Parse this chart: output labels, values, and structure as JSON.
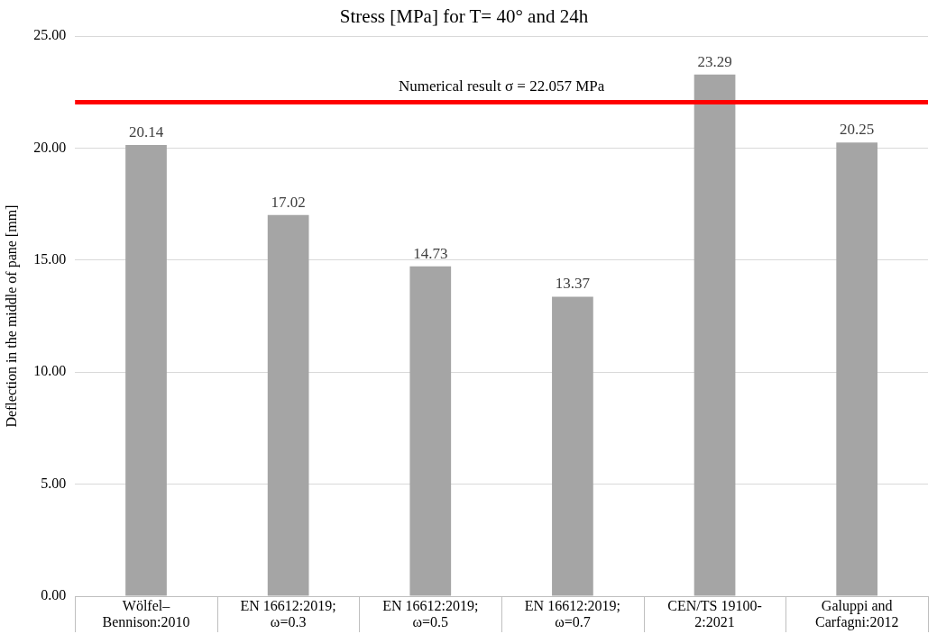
{
  "chart_data": {
    "type": "bar",
    "title": "Stress [MPa] for T= 40° and 24h",
    "ylabel": "Deflection in the middle of pane [mm]",
    "categories": [
      "Wölfel–Bennison:2010",
      "EN 16612:2019; ω=0.3",
      "EN 16612:2019; ω=0.5",
      "EN 16612:2019; ω=0.7",
      "CEN/TS 19100-2:2021",
      "Galuppi and Carfagni:2012"
    ],
    "values": [
      20.14,
      17.02,
      14.73,
      13.37,
      23.29,
      20.25
    ],
    "color": "#a5a5a5",
    "ylim": [
      0,
      25
    ],
    "yticks": [
      {
        "value": 0,
        "label": "0.00"
      },
      {
        "value": 5,
        "label": "5.00"
      },
      {
        "value": 10,
        "label": "10.00"
      },
      {
        "value": 15,
        "label": "15.00"
      },
      {
        "value": 20,
        "label": "20.00"
      },
      {
        "value": 25,
        "label": "25.00"
      }
    ],
    "ref_lines": [
      {
        "axis": "y",
        "value": 22.057,
        "label": "Numerical result σ = 22.057 MPa",
        "color": "#ff0000"
      }
    ],
    "grid": "y",
    "data_labels": true,
    "legend": false
  }
}
